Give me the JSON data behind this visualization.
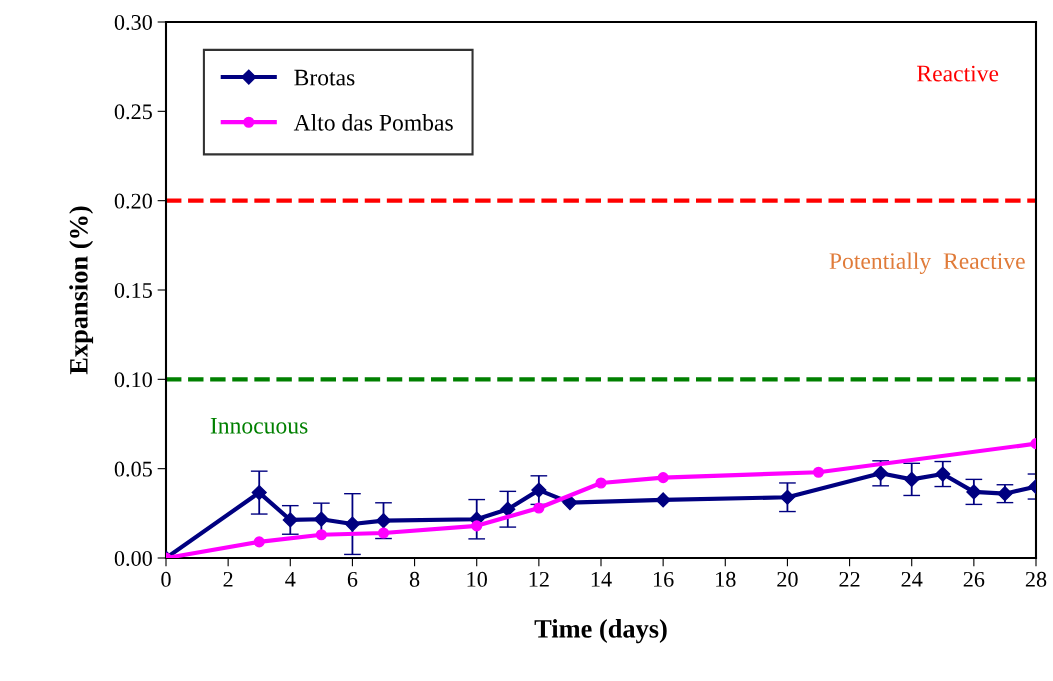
{
  "chart_data": {
    "type": "line",
    "xlabel": "Time (days)",
    "ylabel": "Expansion (%)",
    "xlim": [
      0,
      28
    ],
    "xticks": [
      0,
      2,
      4,
      6,
      8,
      10,
      12,
      14,
      16,
      18,
      20,
      22,
      24,
      26,
      28
    ],
    "ylim": [
      0,
      0.3
    ],
    "yticks": [
      {
        "value": 0,
        "label": "0.00"
      },
      {
        "value": 0.05,
        "label": "0.05"
      },
      {
        "value": 0.1,
        "label": "0.10"
      },
      {
        "value": 0.15,
        "label": "0.15"
      },
      {
        "value": 0.2,
        "label": "0.20"
      },
      {
        "value": 0.25,
        "label": "0.25"
      },
      {
        "value": 0.3,
        "label": "0.30"
      }
    ],
    "grid": false,
    "legend": "top left",
    "series": [
      {
        "name": "Brotas",
        "color": "#000080",
        "marker": "diamond",
        "x": [
          0,
          3,
          4,
          5,
          6,
          7,
          10,
          11,
          12,
          13,
          16,
          20,
          23,
          24,
          25,
          26,
          27,
          28
        ],
        "values": [
          0,
          0.0366,
          0.0213,
          0.0217,
          0.019,
          0.0209,
          0.0217,
          0.0273,
          0.038,
          0.031,
          0.0325,
          0.034,
          0.0474,
          0.044,
          0.047,
          0.037,
          0.036,
          0.04
        ],
        "errors": [
          null,
          0.012,
          0.008,
          0.009,
          0.017,
          0.01,
          0.011,
          0.01,
          0.008,
          null,
          null,
          0.008,
          0.007,
          0.009,
          0.007,
          0.007,
          0.005,
          0.007
        ]
      },
      {
        "name": "Alto das Pombas",
        "color": "#ff00ff",
        "marker": "circle",
        "x": [
          0,
          3,
          5,
          7,
          10,
          12,
          14,
          16,
          21,
          28
        ],
        "values": [
          0,
          0.009,
          0.013,
          0.014,
          0.018,
          0.028,
          0.042,
          0.045,
          0.048,
          0.064
        ]
      }
    ],
    "ref_lines": [
      {
        "axis": "y",
        "value": 0.2,
        "color": "#ff0000",
        "line_style": "dashed"
      },
      {
        "axis": "y",
        "value": 0.1,
        "color": "#008000",
        "line_style": "dashed"
      }
    ],
    "annotations": [
      "Reactive",
      "Potentially  Reactive",
      "Innocuous"
    ]
  }
}
